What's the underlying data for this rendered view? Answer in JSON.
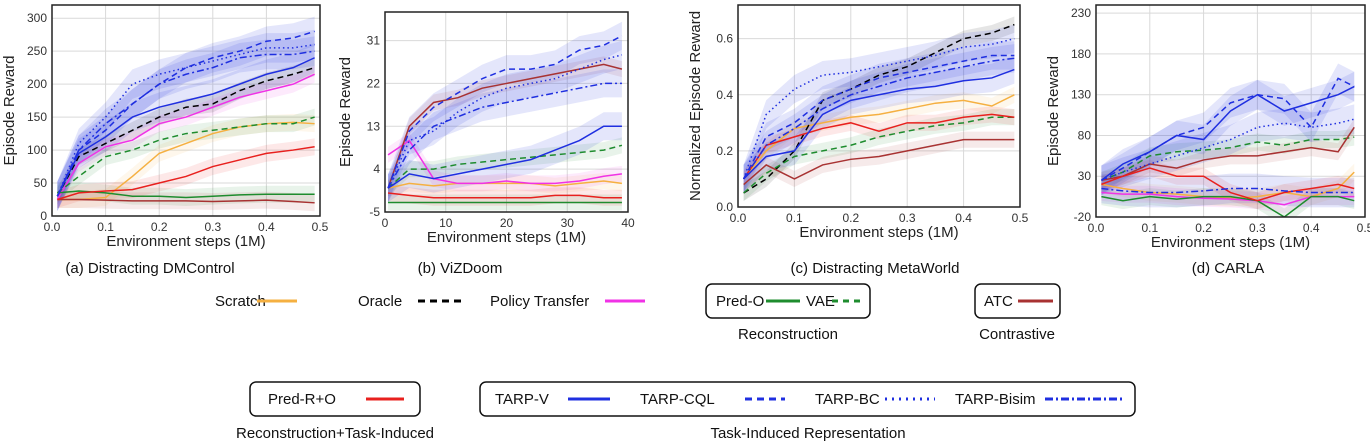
{
  "chart_data": [
    {
      "type": "line",
      "caption": "(a) Distracting DMControl",
      "xlabel": "Environment steps (1M)",
      "ylabel": "Episode Reward",
      "xlim": [
        0,
        0.5
      ],
      "ylim": [
        0,
        320
      ],
      "xticks": [
        "0.0",
        "0.1",
        "0.2",
        "0.3",
        "0.4",
        "0.5"
      ],
      "xtick_values": [
        0,
        0.1,
        0.2,
        0.3,
        0.4,
        0.5
      ],
      "yticks": [
        "0",
        "50",
        "100",
        "150",
        "200",
        "250",
        "300"
      ],
      "ytick_values": [
        0,
        50,
        100,
        150,
        200,
        250,
        300
      ],
      "grid": true,
      "x": [
        0.01,
        0.05,
        0.1,
        0.15,
        0.2,
        0.25,
        0.3,
        0.35,
        0.4,
        0.45,
        0.49
      ],
      "series": [
        {
          "name": "Scratch",
          "values": [
            25,
            25,
            28,
            60,
            95,
            110,
            125,
            135,
            140,
            142,
            140
          ]
        },
        {
          "name": "Oracle",
          "values": [
            30,
            90,
            110,
            130,
            150,
            165,
            170,
            190,
            205,
            215,
            225
          ]
        },
        {
          "name": "Policy Transfer",
          "values": [
            25,
            80,
            105,
            115,
            140,
            150,
            165,
            180,
            190,
            200,
            215
          ]
        },
        {
          "name": "Pred-O",
          "values": [
            35,
            38,
            35,
            30,
            30,
            28,
            30,
            32,
            33,
            33,
            33
          ]
        },
        {
          "name": "VAE",
          "values": [
            35,
            60,
            90,
            100,
            115,
            125,
            130,
            135,
            140,
            140,
            150
          ]
        },
        {
          "name": "ATC",
          "values": [
            25,
            25,
            24,
            23,
            23,
            23,
            22,
            23,
            24,
            22,
            20
          ]
        },
        {
          "name": "Pred-R+O",
          "values": [
            25,
            35,
            38,
            40,
            50,
            60,
            75,
            85,
            95,
            100,
            105
          ]
        },
        {
          "name": "TARP-V",
          "values": [
            30,
            95,
            120,
            150,
            165,
            175,
            185,
            200,
            215,
            225,
            240
          ]
        },
        {
          "name": "TARP-CQL",
          "values": [
            30,
            100,
            130,
            170,
            200,
            225,
            240,
            250,
            265,
            270,
            280
          ]
        },
        {
          "name": "TARP-BC",
          "values": [
            30,
            110,
            150,
            200,
            215,
            225,
            235,
            245,
            255,
            255,
            260
          ]
        },
        {
          "name": "TARP-Bisim",
          "values": [
            30,
            100,
            140,
            170,
            200,
            215,
            225,
            240,
            245,
            245,
            250
          ]
        }
      ]
    },
    {
      "type": "line",
      "caption": "(b) ViZDoom",
      "xlabel": "Environment steps (1M)",
      "ylabel": "Episode Reward",
      "xlim": [
        0,
        40
      ],
      "ylim": [
        -5,
        37
      ],
      "xticks": [
        "0",
        "10",
        "20",
        "30",
        "40"
      ],
      "xtick_values": [
        0,
        10,
        20,
        30,
        40
      ],
      "yticks": [
        "-5",
        "4",
        "13",
        "22",
        "31"
      ],
      "ytick_values": [
        -5,
        4,
        13,
        22,
        31
      ],
      "grid": true,
      "x": [
        0.5,
        4,
        8,
        12,
        16,
        20,
        24,
        28,
        32,
        36,
        39
      ],
      "series": [
        {
          "name": "Scratch",
          "values": [
            0,
            1,
            0.5,
            1,
            1,
            1,
            1,
            0.5,
            1,
            1.5,
            1
          ]
        },
        {
          "name": "Policy Transfer",
          "values": [
            7,
            10,
            2,
            1,
            1,
            1.5,
            1,
            1,
            1.5,
            2.5,
            3
          ]
        },
        {
          "name": "Pred-O",
          "values": [
            -3,
            -3,
            -3,
            -3,
            -3,
            -3,
            -3,
            -3,
            -3,
            -3,
            -3
          ]
        },
        {
          "name": "VAE",
          "values": [
            0,
            4,
            4,
            5,
            5.5,
            6,
            6.5,
            7,
            7.5,
            8,
            9
          ]
        },
        {
          "name": "ATC",
          "values": [
            0,
            13,
            18,
            19,
            21,
            22,
            23,
            24,
            25,
            26,
            25
          ]
        },
        {
          "name": "Pred-R+O",
          "values": [
            -1,
            -1.5,
            -2,
            -2,
            -2,
            -2,
            -2,
            -1.5,
            -1.5,
            -2,
            -2
          ]
        },
        {
          "name": "TARP-V",
          "values": [
            0,
            3,
            2,
            3,
            4,
            5,
            6,
            8,
            10,
            13,
            13
          ]
        },
        {
          "name": "TARP-CQL",
          "values": [
            0,
            12,
            17,
            20,
            23,
            25,
            25,
            26,
            29,
            30,
            32
          ]
        },
        {
          "name": "TARP-BC",
          "values": [
            0,
            10,
            12,
            16,
            19,
            21,
            22,
            23,
            25,
            27,
            28
          ]
        },
        {
          "name": "TARP-Bisim",
          "values": [
            0,
            8,
            13,
            15,
            17,
            18,
            19,
            20,
            21,
            22,
            22
          ]
        }
      ]
    },
    {
      "type": "line",
      "caption": "(c) Distracting MetaWorld",
      "xlabel": "Environment steps (1M)",
      "ylabel": "Normalized Episode Reward",
      "xlim": [
        0,
        0.5
      ],
      "ylim": [
        0,
        0.72
      ],
      "xticks": [
        "0.0",
        "0.1",
        "0.2",
        "0.3",
        "0.4",
        "0.5"
      ],
      "xtick_values": [
        0,
        0.1,
        0.2,
        0.3,
        0.4,
        0.5
      ],
      "yticks": [
        "0.0",
        "0.2",
        "0.4",
        "0.6"
      ],
      "ytick_values": [
        0,
        0.2,
        0.4,
        0.6
      ],
      "grid": true,
      "x": [
        0.01,
        0.05,
        0.1,
        0.15,
        0.2,
        0.25,
        0.3,
        0.35,
        0.4,
        0.45,
        0.49
      ],
      "series": [
        {
          "name": "Scratch",
          "values": [
            0.1,
            0.2,
            0.28,
            0.3,
            0.32,
            0.33,
            0.35,
            0.37,
            0.38,
            0.36,
            0.4
          ]
        },
        {
          "name": "Oracle",
          "values": [
            0.05,
            0.1,
            0.2,
            0.38,
            0.42,
            0.47,
            0.5,
            0.55,
            0.6,
            0.62,
            0.65
          ]
        },
        {
          "name": "VAE",
          "values": [
            0.05,
            0.12,
            0.18,
            0.2,
            0.22,
            0.25,
            0.27,
            0.29,
            0.3,
            0.32,
            0.32
          ]
        },
        {
          "name": "ATC",
          "values": [
            0.08,
            0.15,
            0.1,
            0.15,
            0.17,
            0.18,
            0.2,
            0.22,
            0.24,
            0.24,
            0.24
          ]
        },
        {
          "name": "Pred-R+O",
          "values": [
            0.1,
            0.22,
            0.25,
            0.28,
            0.3,
            0.27,
            0.3,
            0.3,
            0.32,
            0.33,
            0.32
          ]
        },
        {
          "name": "TARP-V",
          "values": [
            0.1,
            0.18,
            0.2,
            0.33,
            0.38,
            0.4,
            0.42,
            0.43,
            0.45,
            0.46,
            0.49
          ]
        },
        {
          "name": "TARP-CQL",
          "values": [
            0.1,
            0.25,
            0.3,
            0.38,
            0.42,
            0.46,
            0.48,
            0.5,
            0.52,
            0.54,
            0.54
          ]
        },
        {
          "name": "TARP-BC",
          "values": [
            0.1,
            0.33,
            0.42,
            0.47,
            0.48,
            0.5,
            0.52,
            0.54,
            0.57,
            0.58,
            0.6
          ]
        },
        {
          "name": "TARP-Bisim",
          "values": [
            0.1,
            0.22,
            0.28,
            0.35,
            0.4,
            0.43,
            0.46,
            0.48,
            0.5,
            0.52,
            0.53
          ]
        }
      ]
    },
    {
      "type": "line",
      "caption": "(d) CARLA",
      "xlabel": "Environment steps (1M)",
      "ylabel": "Episode Reward",
      "xlim": [
        0,
        0.5
      ],
      "ylim": [
        -20,
        240
      ],
      "xticks": [
        "0.0",
        "0.1",
        "0.2",
        "0.3",
        "0.4",
        "0.5"
      ],
      "xtick_values": [
        0,
        0.1,
        0.2,
        0.3,
        0.4,
        0.5
      ],
      "yticks": [
        "-20",
        "30",
        "80",
        "130",
        "180",
        "230"
      ],
      "ytick_values": [
        -20,
        30,
        80,
        130,
        180,
        230
      ],
      "grid": true,
      "x": [
        0.01,
        0.05,
        0.1,
        0.15,
        0.2,
        0.25,
        0.3,
        0.35,
        0.4,
        0.45,
        0.48
      ],
      "series": [
        {
          "name": "Scratch",
          "values": [
            20,
            15,
            10,
            8,
            5,
            3,
            5,
            10,
            5,
            15,
            35
          ]
        },
        {
          "name": "Policy Transfer",
          "values": [
            10,
            8,
            8,
            5,
            3,
            2,
            0,
            -5,
            5,
            5,
            5
          ]
        },
        {
          "name": "Pred-O",
          "values": [
            5,
            0,
            5,
            2,
            5,
            5,
            0,
            -20,
            5,
            5,
            0
          ]
        },
        {
          "name": "VAE",
          "values": [
            25,
            35,
            55,
            60,
            62,
            65,
            72,
            68,
            75,
            75,
            78
          ]
        },
        {
          "name": "ATC",
          "values": [
            25,
            30,
            45,
            40,
            50,
            55,
            55,
            60,
            65,
            60,
            90
          ]
        },
        {
          "name": "Pred-R+O",
          "values": [
            20,
            30,
            40,
            30,
            30,
            10,
            0,
            10,
            15,
            20,
            15
          ]
        },
        {
          "name": "TARP-V",
          "values": [
            25,
            45,
            60,
            80,
            75,
            110,
            130,
            110,
            120,
            130,
            140
          ]
        },
        {
          "name": "TARP-CQL",
          "values": [
            25,
            40,
            60,
            80,
            90,
            120,
            130,
            125,
            90,
            150,
            140
          ]
        },
        {
          "name": "TARP-BC",
          "values": [
            25,
            35,
            45,
            55,
            65,
            75,
            90,
            95,
            90,
            95,
            100
          ]
        },
        {
          "name": "TARP-Bisim",
          "values": [
            15,
            12,
            10,
            10,
            12,
            15,
            15,
            12,
            10,
            10,
            10
          ]
        }
      ]
    }
  ],
  "styles": {
    "Scratch": {
      "color": "#f5b041",
      "dash": "solid"
    },
    "Oracle": {
      "color": "#000000",
      "dash": "dashed"
    },
    "Policy Transfer": {
      "color": "#f032e6",
      "dash": "solid"
    },
    "Pred-O": {
      "color": "#1e8c2e",
      "dash": "solid"
    },
    "VAE": {
      "color": "#1e8c2e",
      "dash": "dashed"
    },
    "ATC": {
      "color": "#a83232",
      "dash": "solid"
    },
    "Pred-R+O": {
      "color": "#e8201e",
      "dash": "solid"
    },
    "TARP-V": {
      "color": "#1f2fe0",
      "dash": "solid"
    },
    "TARP-CQL": {
      "color": "#1f2fe0",
      "dash": "dashed"
    },
    "TARP-BC": {
      "color": "#1f2fe0",
      "dash": "dotted"
    },
    "TARP-Bisim": {
      "color": "#1f2fe0",
      "dash": "dashdot"
    }
  },
  "legend": {
    "scratch": "Scratch",
    "oracle": "Oracle",
    "policy_transfer": "Policy Transfer",
    "pred_o": "Pred-O",
    "vae": "VAE",
    "reconstruction": "Reconstruction",
    "atc": "ATC",
    "contrastive": "Contrastive",
    "pred_r_o": "Pred-R+O",
    "recon_task": "Reconstruction+Task-Induced",
    "tarp_v": "TARP-V",
    "tarp_cql": "TARP-CQL",
    "tarp_bc": "TARP-BC",
    "tarp_bisim": "TARP-Bisim",
    "task_induced": "Task-Induced Representation"
  }
}
